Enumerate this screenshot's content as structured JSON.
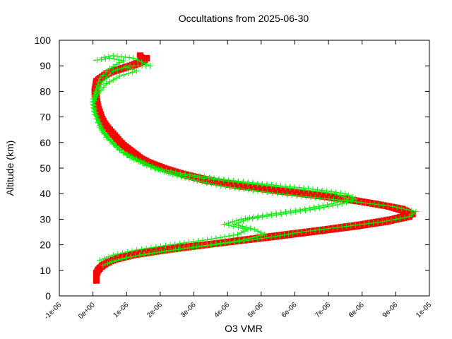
{
  "chart_data": {
    "type": "scatter",
    "title": "Occultations from 2025-06-30",
    "xlabel": "O3 VMR",
    "ylabel": "Altitude (km)",
    "xlim": [
      -1e-06,
      1e-05
    ],
    "ylim": [
      0,
      100
    ],
    "x_ticks": [
      "-1e-06",
      "0e+00",
      "1e-06",
      "2e-06",
      "3e-06",
      "4e-06",
      "5e-06",
      "6e-06",
      "7e-06",
      "8e-06",
      "9e-06",
      "1e-05"
    ],
    "x_tick_values": [
      -1e-06,
      0,
      1e-06,
      2e-06,
      3e-06,
      4e-06,
      5e-06,
      6e-06,
      7e-06,
      8e-06,
      9e-06,
      1e-05
    ],
    "y_ticks": [
      "0",
      "10",
      "20",
      "30",
      "40",
      "50",
      "60",
      "70",
      "80",
      "90",
      "100"
    ],
    "y_tick_values": [
      0,
      10,
      20,
      30,
      40,
      50,
      60,
      70,
      80,
      90,
      100
    ],
    "grid": false,
    "legend": "none",
    "series": [
      {
        "marker": "square",
        "color": "#ff0000",
        "profiles": [
          [
            [
              1e-07,
              6
            ],
            [
              1e-07,
              8
            ],
            [
              1.5e-07,
              10
            ],
            [
              3e-07,
              12
            ],
            [
              6e-07,
              14
            ],
            [
              1.2e-06,
              16
            ],
            [
              2.2e-06,
              18
            ],
            [
              3.4e-06,
              20
            ],
            [
              4.5e-06,
              22
            ],
            [
              5.7e-06,
              24
            ],
            [
              6.9e-06,
              26
            ],
            [
              8e-06,
              28
            ],
            [
              8.9e-06,
              30
            ],
            [
              9.5e-06,
              32
            ],
            [
              9.2e-06,
              34
            ],
            [
              8.4e-06,
              36
            ],
            [
              7.5e-06,
              38
            ],
            [
              6.3e-06,
              40
            ],
            [
              5e-06,
              42
            ],
            [
              4e-06,
              44
            ],
            [
              3.2e-06,
              46
            ],
            [
              2.6e-06,
              48
            ],
            [
              2.1e-06,
              50
            ],
            [
              1.7e-06,
              52
            ],
            [
              1.4e-06,
              54
            ],
            [
              1.1e-06,
              57
            ],
            [
              8e-07,
              60
            ],
            [
              6e-07,
              63
            ],
            [
              4e-07,
              66
            ],
            [
              2.5e-07,
              70
            ],
            [
              1.5e-07,
              74
            ],
            [
              1e-07,
              78
            ],
            [
              1e-07,
              82
            ],
            [
              2e-07,
              85
            ],
            [
              6e-07,
              88
            ],
            [
              1.1e-06,
              90
            ],
            [
              1.5e-06,
              92
            ],
            [
              1.4e-06,
              94
            ]
          ],
          [
            [
              1e-07,
              9
            ],
            [
              2e-07,
              11
            ],
            [
              4e-07,
              13
            ],
            [
              8e-07,
              15
            ],
            [
              1.5e-06,
              17
            ],
            [
              2.6e-06,
              19
            ],
            [
              4e-06,
              21
            ],
            [
              5.3e-06,
              23
            ],
            [
              6.5e-06,
              25
            ],
            [
              7.7e-06,
              27
            ],
            [
              8.7e-06,
              29
            ],
            [
              9.4e-06,
              31
            ],
            [
              9.3e-06,
              33
            ],
            [
              8.8e-06,
              35
            ],
            [
              7.9e-06,
              37
            ],
            [
              6.8e-06,
              39
            ],
            [
              5.5e-06,
              41
            ],
            [
              4.3e-06,
              43
            ],
            [
              3.4e-06,
              45
            ],
            [
              2.8e-06,
              47
            ],
            [
              2.3e-06,
              49
            ],
            [
              1.9e-06,
              51
            ],
            [
              1.5e-06,
              53
            ],
            [
              1.2e-06,
              56
            ],
            [
              9e-07,
              59
            ],
            [
              7e-07,
              62
            ],
            [
              5e-07,
              65
            ],
            [
              3e-07,
              68
            ],
            [
              2e-07,
              72
            ],
            [
              1e-07,
              76
            ],
            [
              5e-08,
              80
            ],
            [
              1e-07,
              84
            ],
            [
              4e-07,
              87
            ],
            [
              9e-07,
              89
            ],
            [
              1.4e-06,
              91
            ],
            [
              1.6e-06,
              93
            ]
          ]
        ]
      },
      {
        "marker": "plus",
        "color": "#00ee00",
        "profiles": [
          [
            [
              3e-07,
              12
            ],
            [
              7e-07,
              14
            ],
            [
              1.4e-06,
              16
            ],
            [
              2.4e-06,
              18
            ],
            [
              3.5e-06,
              20
            ],
            [
              4.5e-06,
              22
            ],
            [
              5.1e-06,
              24
            ],
            [
              4.8e-06,
              26
            ],
            [
              4.2e-06,
              28
            ],
            [
              4.6e-06,
              30
            ],
            [
              5.6e-06,
              32
            ],
            [
              6.6e-06,
              34
            ],
            [
              7.4e-06,
              36
            ],
            [
              7.8e-06,
              38
            ],
            [
              7.5e-06,
              40
            ],
            [
              6.4e-06,
              42
            ],
            [
              4.9e-06,
              44
            ],
            [
              3.6e-06,
              46
            ],
            [
              2.6e-06,
              48
            ],
            [
              1.9e-06,
              50
            ],
            [
              1.4e-06,
              53
            ],
            [
              9e-07,
              56
            ],
            [
              6e-07,
              60
            ],
            [
              3e-07,
              64
            ],
            [
              1.5e-07,
              68
            ],
            [
              5e-08,
              72
            ],
            [
              0,
              76
            ],
            [
              1e-07,
              80
            ],
            [
              3e-07,
              84
            ],
            [
              6e-07,
              88
            ],
            [
              1.1e-06,
              90
            ],
            [
              1.7e-06,
              90
            ],
            [
              1.2e-06,
              93
            ],
            [
              6e-07,
              94
            ],
            [
              2e-07,
              93
            ]
          ],
          [
            [
              5e-07,
              13
            ],
            [
              1e-06,
              15
            ],
            [
              1.9e-06,
              17
            ],
            [
              3e-06,
              19
            ],
            [
              4.2e-06,
              21
            ],
            [
              5.3e-06,
              23
            ],
            [
              6.2e-06,
              25
            ],
            [
              7.4e-06,
              27
            ],
            [
              8.6e-06,
              29
            ],
            [
              9.4e-06,
              31
            ],
            [
              9.6e-06,
              33
            ],
            [
              8.9e-06,
              35
            ],
            [
              7.7e-06,
              37
            ],
            [
              6.2e-06,
              39
            ],
            [
              4.9e-06,
              41
            ],
            [
              3.8e-06,
              43
            ],
            [
              3.1e-06,
              45
            ],
            [
              2.5e-06,
              47
            ],
            [
              2e-06,
              49
            ],
            [
              1.6e-06,
              51
            ],
            [
              1.2e-06,
              54
            ],
            [
              8e-07,
              57
            ],
            [
              5e-07,
              61
            ],
            [
              3e-07,
              65
            ],
            [
              1.5e-07,
              69
            ],
            [
              5e-08,
              73
            ],
            [
              0,
              77
            ],
            [
              1e-07,
              81
            ],
            [
              2e-07,
              85
            ],
            [
              5e-07,
              89
            ],
            [
              9e-07,
              92
            ],
            [
              5e-07,
              93
            ],
            [
              0,
              92
            ]
          ],
          [
            [
              2e-07,
              14
            ],
            [
              6e-07,
              16
            ],
            [
              1.3e-06,
              18
            ],
            [
              2.3e-06,
              20
            ],
            [
              3.4e-06,
              22
            ],
            [
              4.3e-06,
              24
            ],
            [
              4.6e-06,
              26
            ],
            [
              3.9e-06,
              28
            ],
            [
              4.4e-06,
              30
            ],
            [
              5.3e-06,
              32
            ],
            [
              6.3e-06,
              34
            ],
            [
              7.1e-06,
              36
            ],
            [
              7.6e-06,
              38
            ],
            [
              7.2e-06,
              40
            ],
            [
              6e-06,
              42
            ],
            [
              4.6e-06,
              44
            ],
            [
              3.3e-06,
              46
            ],
            [
              2.3e-06,
              48
            ],
            [
              1.6e-06,
              51
            ],
            [
              1.1e-06,
              54
            ],
            [
              7e-07,
              58
            ],
            [
              4e-07,
              62
            ],
            [
              2e-07,
              66
            ],
            [
              5e-08,
              71
            ],
            [
              0,
              75
            ],
            [
              1.5e-07,
              79
            ],
            [
              4e-07,
              83
            ],
            [
              8e-07,
              86
            ],
            [
              1.3e-06,
              88
            ],
            [
              9e-07,
              90
            ]
          ]
        ]
      }
    ]
  }
}
